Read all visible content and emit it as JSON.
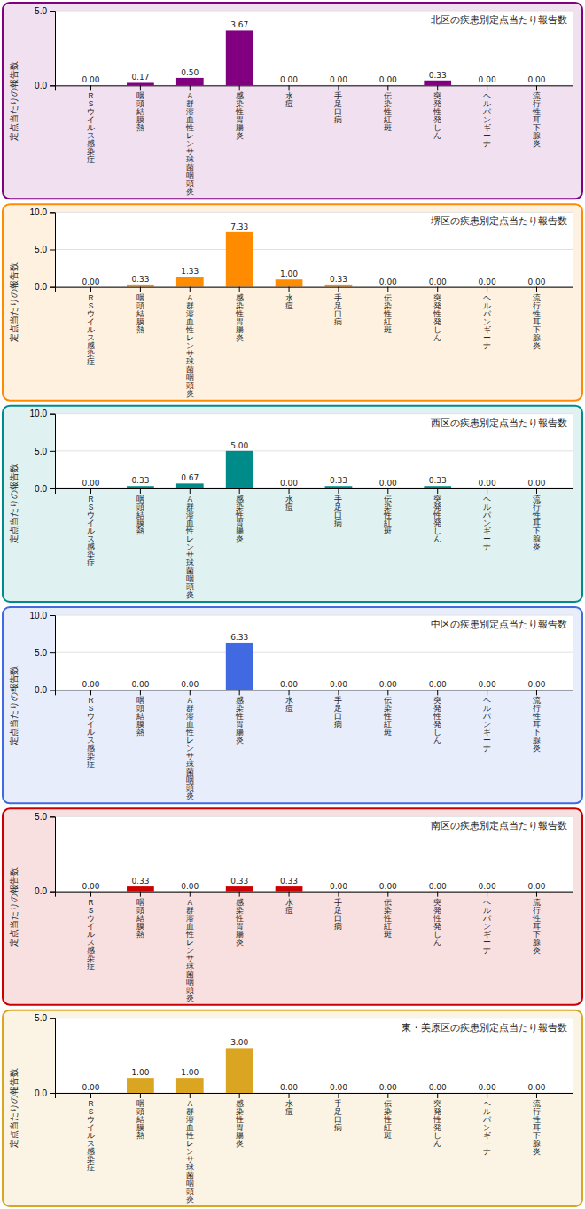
{
  "chart_data": [
    {
      "type": "bar",
      "title": "北区の疾患別定点当たり報告数",
      "ylabel": "定点当たりの報告数",
      "categories": [
        "R\nS\nウ\nイ\nル\nス\n感\n染\n症",
        "咽\n頭\n結\n膜\n熱",
        "A\n群\n溶\n血\n性\nレ\nン\nサ\n球\n菌\n咽\n頭\n炎",
        "感\n染\n性\n胃\n腸\n炎",
        "水\n痘",
        "手\n足\n口\n病",
        "伝\n染\n性\n紅\n斑",
        "突\n発\n性\n発\nし\nん",
        "ヘ\nル\nパ\nン\nギ\nー\nナ",
        "流\n行\n性\n耳\n下\n腺\n炎"
      ],
      "values": [
        0.0,
        0.17,
        0.5,
        3.67,
        0.0,
        0.0,
        0.0,
        0.33,
        0.0,
        0.0
      ],
      "value_labels": [
        "0.00",
        "0.17",
        "0.50",
        "3.67",
        "0.00",
        "0.00",
        "0.00",
        "0.33",
        "0.00",
        "0.00"
      ],
      "color": "#800080",
      "ylim": [
        0,
        5.0
      ],
      "yticks": [
        {
          "value": 0.0,
          "label": "0.0"
        },
        {
          "value": 5.0,
          "label": "5.0"
        }
      ],
      "grid": true,
      "data_labels": true
    },
    {
      "type": "bar",
      "title": "堺区の疾患別定点当たり報告数",
      "ylabel": "定点当たりの報告数",
      "categories": [
        "R\nS\nウ\nイ\nル\nス\n感\n染\n症",
        "咽\n頭\n結\n膜\n熱",
        "A\n群\n溶\n血\n性\nレ\nン\nサ\n球\n菌\n咽\n頭\n炎",
        "感\n染\n性\n胃\n腸\n炎",
        "水\n痘",
        "手\n足\n口\n病",
        "伝\n染\n性\n紅\n斑",
        "突\n発\n性\n発\nし\nん",
        "ヘ\nル\nパ\nン\nギ\nー\nナ",
        "流\n行\n性\n耳\n下\n腺\n炎"
      ],
      "values": [
        0.0,
        0.33,
        1.33,
        7.33,
        1.0,
        0.33,
        0.0,
        0.0,
        0.0,
        0.0
      ],
      "value_labels": [
        "0.00",
        "0.33",
        "1.33",
        "7.33",
        "1.00",
        "0.33",
        "0.00",
        "0.00",
        "0.00",
        "0.00"
      ],
      "color": "#FF8C00",
      "ylim": [
        0,
        10.0
      ],
      "yticks": [
        {
          "value": 0.0,
          "label": "0.0"
        },
        {
          "value": 5.0,
          "label": "5.0"
        },
        {
          "value": 10.0,
          "label": "10.0"
        }
      ],
      "grid": true,
      "data_labels": true
    },
    {
      "type": "bar",
      "title": "西区の疾患別定点当たり報告数",
      "ylabel": "定点当たりの報告数",
      "categories": [
        "R\nS\nウ\nイ\nル\nス\n感\n染\n症",
        "咽\n頭\n結\n膜\n熱",
        "A\n群\n溶\n血\n性\nレ\nン\nサ\n球\n菌\n咽\n頭\n炎",
        "感\n染\n性\n胃\n腸\n炎",
        "水\n痘",
        "手\n足\n口\n病",
        "伝\n染\n性\n紅\n斑",
        "突\n発\n性\n発\nし\nん",
        "ヘ\nル\nパ\nン\nギ\nー\nナ",
        "流\n行\n性\n耳\n下\n腺\n炎"
      ],
      "values": [
        0.0,
        0.33,
        0.67,
        5.0,
        0.0,
        0.33,
        0.0,
        0.33,
        0.0,
        0.0
      ],
      "value_labels": [
        "0.00",
        "0.33",
        "0.67",
        "5.00",
        "0.00",
        "0.33",
        "0.00",
        "0.33",
        "0.00",
        "0.00"
      ],
      "color": "#008B8B",
      "ylim": [
        0,
        10.0
      ],
      "yticks": [
        {
          "value": 0.0,
          "label": "0.0"
        },
        {
          "value": 5.0,
          "label": "5.0"
        },
        {
          "value": 10.0,
          "label": "10.0"
        }
      ],
      "grid": true,
      "data_labels": true
    },
    {
      "type": "bar",
      "title": "中区の疾患別定点当たり報告数",
      "ylabel": "定点当たりの報告数",
      "categories": [
        "R\nS\nウ\nイ\nル\nス\n感\n染\n症",
        "咽\n頭\n結\n膜\n熱",
        "A\n群\n溶\n血\n性\nレ\nン\nサ\n球\n菌\n咽\n頭\n炎",
        "感\n染\n性\n胃\n腸\n炎",
        "水\n痘",
        "手\n足\n口\n病",
        "伝\n染\n性\n紅\n斑",
        "突\n発\n性\n発\nし\nん",
        "ヘ\nル\nパ\nン\nギ\nー\nナ",
        "流\n行\n性\n耳\n下\n腺\n炎"
      ],
      "values": [
        0.0,
        0.0,
        0.0,
        6.33,
        0.0,
        0.0,
        0.0,
        0.0,
        0.0,
        0.0
      ],
      "value_labels": [
        "0.00",
        "0.00",
        "0.00",
        "6.33",
        "0.00",
        "0.00",
        "0.00",
        "0.00",
        "0.00",
        "0.00"
      ],
      "color": "#4169E1",
      "ylim": [
        0,
        10.0
      ],
      "yticks": [
        {
          "value": 0.0,
          "label": "0.0"
        },
        {
          "value": 5.0,
          "label": "5.0"
        },
        {
          "value": 10.0,
          "label": "10.0"
        }
      ],
      "grid": true,
      "data_labels": true
    },
    {
      "type": "bar",
      "title": "南区の疾患別定点当たり報告数",
      "ylabel": "定点当たりの報告数",
      "categories": [
        "R\nS\nウ\nイ\nル\nス\n感\n染\n症",
        "咽\n頭\n結\n膜\n熱",
        "A\n群\n溶\n血\n性\nレ\nン\nサ\n球\n菌\n咽\n頭\n炎",
        "感\n染\n性\n胃\n腸\n炎",
        "水\n痘",
        "手\n足\n口\n病",
        "伝\n染\n性\n紅\n斑",
        "突\n発\n性\n発\nし\nん",
        "ヘ\nル\nパ\nン\nギ\nー\nナ",
        "流\n行\n性\n耳\n下\n腺\n炎"
      ],
      "values": [
        0.0,
        0.33,
        0.0,
        0.33,
        0.33,
        0.0,
        0.0,
        0.0,
        0.0,
        0.0
      ],
      "value_labels": [
        "0.00",
        "0.33",
        "0.00",
        "0.33",
        "0.33",
        "0.00",
        "0.00",
        "0.00",
        "0.00",
        "0.00"
      ],
      "color": "#CC0000",
      "ylim": [
        0,
        5.0
      ],
      "yticks": [
        {
          "value": 0.0,
          "label": "0.0"
        },
        {
          "value": 5.0,
          "label": "5.0"
        }
      ],
      "grid": true,
      "data_labels": true
    },
    {
      "type": "bar",
      "title": "東・美原区の疾患別定点当たり報告数",
      "ylabel": "定点当たりの報告数",
      "categories": [
        "R\nS\nウ\nイ\nル\nス\n感\n染\n症",
        "咽\n頭\n結\n膜\n熱",
        "A\n群\n溶\n血\n性\nレ\nン\nサ\n球\n菌\n咽\n頭\n炎",
        "感\n染\n性\n胃\n腸\n炎",
        "水\n痘",
        "手\n足\n口\n病",
        "伝\n染\n性\n紅\n斑",
        "突\n発\n性\n発\nし\nん",
        "ヘ\nル\nパ\nン\nギ\nー\nナ",
        "流\n行\n性\n耳\n下\n腺\n炎"
      ],
      "values": [
        0.0,
        1.0,
        1.0,
        3.0,
        0.0,
        0.0,
        0.0,
        0.0,
        0.0,
        0.0
      ],
      "value_labels": [
        "0.00",
        "1.00",
        "1.00",
        "3.00",
        "0.00",
        "0.00",
        "0.00",
        "0.00",
        "0.00",
        "0.00"
      ],
      "color": "#DAA520",
      "ylim": [
        0,
        5.0
      ],
      "yticks": [
        {
          "value": 0.0,
          "label": "0.0"
        },
        {
          "value": 5.0,
          "label": "5.0"
        }
      ],
      "grid": true,
      "data_labels": true
    }
  ]
}
